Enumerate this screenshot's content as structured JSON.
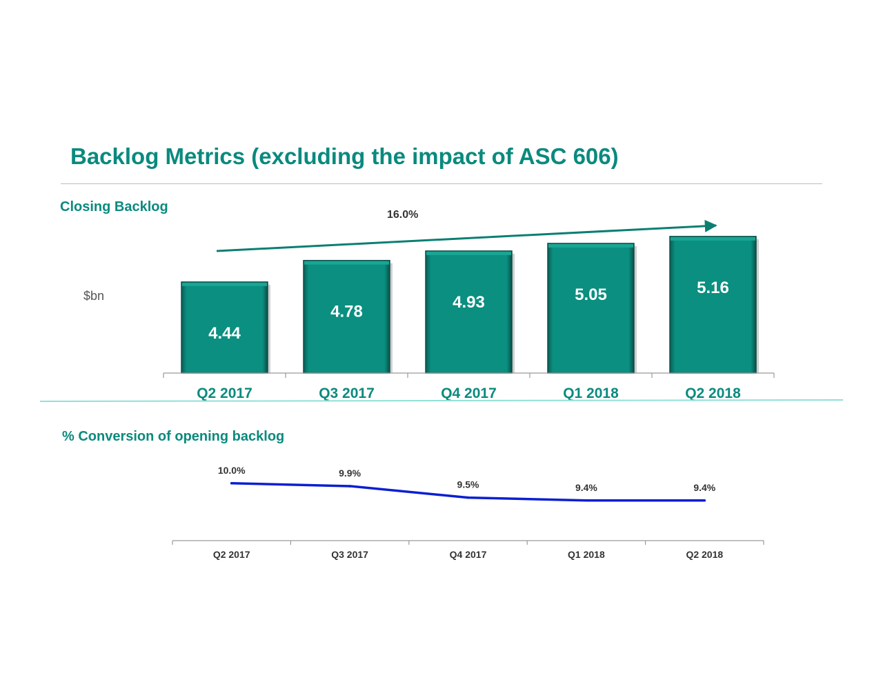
{
  "title": "Backlog Metrics (excluding the impact of ASC 606)",
  "colors": {
    "accent": "#0a8a7e",
    "bar_fill": "#0a8f80",
    "bar_edge": "#0b4f48",
    "line": "#0b1fd1",
    "divider": "#8fe0d8",
    "axis": "#9a9a9a"
  },
  "chart_data": [
    {
      "type": "bar",
      "title": "Closing Backlog",
      "ylabel": "$bn",
      "categories": [
        "Q2 2017",
        "Q3 2017",
        "Q4 2017",
        "Q1 2018",
        "Q2 2018"
      ],
      "values": [
        4.44,
        4.78,
        4.93,
        5.05,
        5.16
      ],
      "data_labels": [
        "4.44",
        "4.78",
        "4.93",
        "5.05",
        "5.16"
      ],
      "annotation": "16.0%",
      "ylim": [
        3.0,
        5.3
      ],
      "grid": false,
      "legend": "none"
    },
    {
      "type": "line",
      "title": "% Conversion of opening backlog",
      "categories": [
        "Q2 2017",
        "Q3 2017",
        "Q4 2017",
        "Q1 2018",
        "Q2 2018"
      ],
      "values": [
        10.0,
        9.9,
        9.5,
        9.4,
        9.4
      ],
      "data_labels": [
        "10.0%",
        "9.9%",
        "9.5%",
        "9.4%",
        "9.4%"
      ],
      "ylim": [
        8.0,
        10.5
      ],
      "grid": false,
      "legend": "none"
    }
  ]
}
